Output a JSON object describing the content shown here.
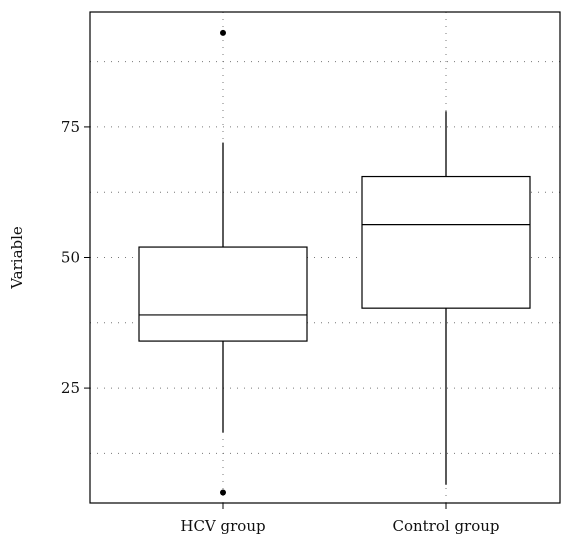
{
  "chart_data": {
    "type": "box",
    "title": "",
    "xlabel": "",
    "ylabel": "Variable",
    "ylim": [
      3,
      97
    ],
    "yticks": [
      25,
      50,
      75
    ],
    "minor_gridlines": [
      12.5,
      37.5,
      62.5,
      87.5
    ],
    "grid": true,
    "grid_style": "dotted",
    "categories": [
      "HCV group",
      "Control group"
    ],
    "boxes": [
      {
        "category": "HCV group",
        "whisker_low": 16.5,
        "q1": 34,
        "median": 39,
        "q3": 52,
        "whisker_high": 72,
        "outliers": [
          93,
          5
        ]
      },
      {
        "category": "Control group",
        "whisker_low": 6.5,
        "q1": 40.3,
        "median": 56.3,
        "q3": 65.5,
        "whisker_high": 78,
        "outliers": []
      }
    ],
    "colors": {
      "box_fill": "#ffffff",
      "stroke": "#000000",
      "grid": "#777777"
    }
  }
}
